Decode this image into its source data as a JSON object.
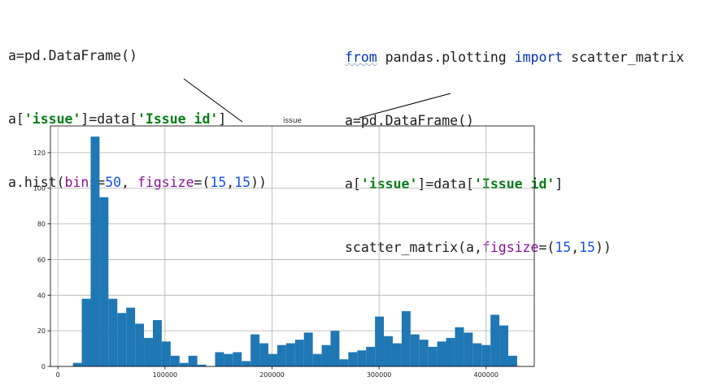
{
  "left_code": {
    "line1": "a=pd.DataFrame()",
    "line2_pre": "a[",
    "line2_str1": "'issue'",
    "line2_mid": "]=data[",
    "line2_str2": "'Issue id'",
    "line2_post": "]",
    "line3_pre": "a.hist(",
    "line3_p1": "bins",
    "line3_eq1": "=",
    "line3_n1": "50",
    "line3_sep": ", ",
    "line3_p2": "figsize",
    "line3_eq2": "=(",
    "line3_n2": "15",
    "line3_comma": ",",
    "line3_n3": "15",
    "line3_post": "))"
  },
  "right_code": {
    "line1_kw1": "from",
    "line1_mod": " pandas.plotting ",
    "line1_kw2": "import",
    "line1_name": " scatter_matrix",
    "line2": "a=pd.DataFrame()",
    "line3_pre": "a[",
    "line3_str1": "'issue'",
    "line3_mid": "]=data[",
    "line3_str2": "'Issue id'",
    "line3_post": "]",
    "line4_pre": "scatter_matrix(a,",
    "line4_p": "figsize",
    "line4_eq": "=(",
    "line4_n1": "15",
    "line4_comma": ",",
    "line4_n2": "15",
    "line4_post": "))"
  },
  "colors": {
    "bar": "#1f77b4",
    "grid": "#b0b0b0",
    "keyword": "#0033b3",
    "string": "#067d17",
    "number": "#1750eb",
    "param": "#871094"
  },
  "chart_data": {
    "type": "bar",
    "title": "issue",
    "xlabel": "",
    "ylabel": "",
    "grid": true,
    "bins": 50,
    "xlim": [
      -7000,
      445000
    ],
    "ylim": [
      0,
      135
    ],
    "bin_start": 14000,
    "bin_width": 8300,
    "xticks": [
      0,
      100000,
      200000,
      300000,
      400000
    ],
    "xtick_labels": [
      "0",
      "100000",
      "200000",
      "300000",
      "400000"
    ],
    "yticks": [
      0,
      20,
      40,
      60,
      80,
      100,
      120
    ],
    "ytick_labels": [
      "0",
      "20",
      "40",
      "60",
      "80",
      "100",
      "120"
    ],
    "values": [
      2,
      38,
      129,
      95,
      38,
      30,
      33,
      24,
      16,
      26,
      14,
      6,
      2,
      6,
      1,
      0,
      8,
      7,
      8,
      3,
      18,
      13,
      7,
      12,
      13,
      15,
      19,
      7,
      12,
      20,
      4,
      8,
      9,
      11,
      28,
      17,
      13,
      31,
      18,
      15,
      11,
      14,
      16,
      22,
      19,
      13,
      12,
      29,
      23,
      6
    ]
  }
}
